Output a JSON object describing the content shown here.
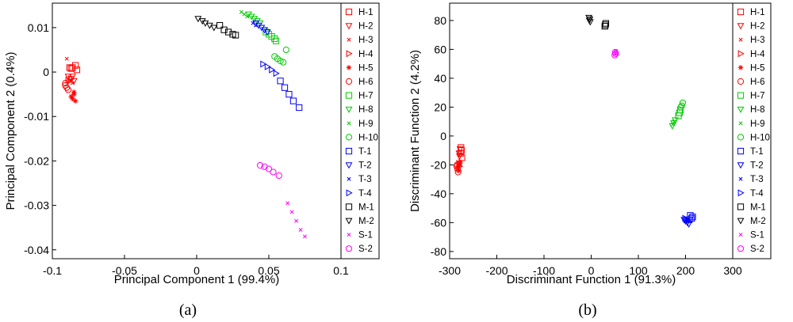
{
  "figure": {
    "caption_a": "(a)",
    "caption_b": "(b)"
  },
  "legend_labels": [
    "H-1",
    "H-2",
    "H-3",
    "H-4",
    "H-5",
    "H-6",
    "H-7",
    "H-8",
    "H-9",
    "H-10",
    "T-1",
    "T-2",
    "T-3",
    "T-4",
    "M-1",
    "M-2",
    "S-1",
    "S-2"
  ],
  "series_style": {
    "H-1": {
      "color": "#ff0000",
      "marker": "square"
    },
    "H-2": {
      "color": "#ff0000",
      "marker": "triangle-down"
    },
    "H-3": {
      "color": "#ff0000",
      "marker": "x"
    },
    "H-4": {
      "color": "#ff0000",
      "marker": "triangle-right"
    },
    "H-5": {
      "color": "#ff0000",
      "marker": "star"
    },
    "H-6": {
      "color": "#ff0000",
      "marker": "circle"
    },
    "H-7": {
      "color": "#00cc00",
      "marker": "square"
    },
    "H-8": {
      "color": "#00cc00",
      "marker": "triangle-down"
    },
    "H-9": {
      "color": "#00cc00",
      "marker": "x"
    },
    "H-10": {
      "color": "#00cc00",
      "marker": "circle"
    },
    "T-1": {
      "color": "#0000ff",
      "marker": "square"
    },
    "T-2": {
      "color": "#0000ff",
      "marker": "triangle-down"
    },
    "T-3": {
      "color": "#0000ff",
      "marker": "x"
    },
    "T-4": {
      "color": "#0000ff",
      "marker": "triangle-right"
    },
    "M-1": {
      "color": "#000000",
      "marker": "square"
    },
    "M-2": {
      "color": "#000000",
      "marker": "triangle-down"
    },
    "S-1": {
      "color": "#ff00ff",
      "marker": "x"
    },
    "S-2": {
      "color": "#ff00ff",
      "marker": "circle"
    }
  },
  "chart_data": [
    {
      "type": "scatter",
      "panel": "a",
      "xlabel": "Principal Component 1 (99.4%)",
      "ylabel": "Principal Component 2 (0.4%)",
      "xlim": [
        -0.1,
        0.1
      ],
      "ylim": [
        -0.042,
        0.0155
      ],
      "xticks": [
        -0.1,
        -0.05,
        0,
        0.05,
        0.1
      ],
      "xtick_labels": [
        "-0.1",
        "-0.05",
        "0",
        "0.05",
        "0.1"
      ],
      "yticks": [
        0.01,
        0,
        -0.01,
        -0.02,
        -0.03,
        -0.04
      ],
      "ytick_labels": [
        "0.01",
        "0",
        "-0.01",
        "-0.02",
        "-0.03",
        "-0.04"
      ],
      "grid": false,
      "legend": "right",
      "series": [
        {
          "name": "H-1",
          "points": [
            [
              -0.088,
              0.001
            ],
            [
              -0.086,
              0.001
            ],
            [
              -0.084,
              0.0015
            ],
            [
              -0.083,
              0.0005
            ],
            [
              -0.087,
              0.0008
            ]
          ]
        },
        {
          "name": "H-2",
          "points": [
            [
              -0.089,
              -0.001
            ],
            [
              -0.087,
              -0.0015
            ],
            [
              -0.085,
              -0.002
            ],
            [
              -0.086,
              -0.001
            ]
          ]
        },
        {
          "name": "H-3",
          "points": [
            [
              -0.09,
              0.003
            ],
            [
              -0.088,
              -0.002
            ],
            [
              -0.086,
              -0.0025
            ]
          ]
        },
        {
          "name": "H-4",
          "points": [
            [
              -0.088,
              -0.002
            ],
            [
              -0.087,
              -0.0015
            ],
            [
              -0.089,
              -0.0018
            ]
          ]
        },
        {
          "name": "H-5",
          "points": [
            [
              -0.087,
              -0.0055
            ],
            [
              -0.086,
              -0.006
            ],
            [
              -0.085,
              -0.005
            ],
            [
              -0.084,
              -0.0065
            ],
            [
              -0.085,
              -0.0045
            ]
          ]
        },
        {
          "name": "H-6",
          "points": [
            [
              -0.091,
              -0.003
            ],
            [
              -0.09,
              -0.0035
            ],
            [
              -0.089,
              -0.004
            ],
            [
              -0.091,
              -0.0025
            ]
          ]
        },
        {
          "name": "H-7",
          "points": [
            [
              0.05,
              0.0085
            ],
            [
              0.052,
              0.008
            ],
            [
              0.054,
              0.0075
            ],
            [
              0.055,
              0.007
            ],
            [
              0.048,
              0.009
            ]
          ]
        },
        {
          "name": "H-8",
          "points": [
            [
              0.036,
              0.013
            ],
            [
              0.038,
              0.0125
            ],
            [
              0.04,
              0.012
            ],
            [
              0.042,
              0.0115
            ],
            [
              0.044,
              0.011
            ]
          ]
        },
        {
          "name": "H-9",
          "points": [
            [
              0.031,
              0.0135
            ],
            [
              0.033,
              0.013
            ],
            [
              0.035,
              0.0125
            ]
          ]
        },
        {
          "name": "H-10",
          "points": [
            [
              0.054,
              0.0035
            ],
            [
              0.056,
              0.003
            ],
            [
              0.058,
              0.0025
            ],
            [
              0.06,
              0.0022
            ],
            [
              0.062,
              0.005
            ]
          ]
        },
        {
          "name": "T-1",
          "points": [
            [
              0.058,
              -0.002
            ],
            [
              0.061,
              -0.0035
            ],
            [
              0.064,
              -0.005
            ],
            [
              0.067,
              -0.0065
            ],
            [
              0.071,
              -0.008
            ]
          ]
        },
        {
          "name": "T-2",
          "points": [
            [
              0.043,
              0.0105
            ],
            [
              0.045,
              0.01
            ],
            [
              0.047,
              0.0095
            ],
            [
              0.049,
              0.009
            ],
            [
              0.041,
              0.011
            ]
          ]
        },
        {
          "name": "T-3",
          "points": [
            [
              0.039,
              0.011
            ],
            [
              0.041,
              0.0105
            ]
          ]
        },
        {
          "name": "T-4",
          "points": [
            [
              0.046,
              0.0018
            ],
            [
              0.049,
              0.0012
            ],
            [
              0.052,
              0.0005
            ],
            [
              0.055,
              -0.0003
            ]
          ]
        },
        {
          "name": "M-1",
          "points": [
            [
              0.016,
              0.0105
            ],
            [
              0.019,
              0.0095
            ],
            [
              0.022,
              0.009
            ],
            [
              0.025,
              0.0085
            ],
            [
              0.027,
              0.0083
            ]
          ]
        },
        {
          "name": "M-2",
          "points": [
            [
              0.001,
              0.012
            ],
            [
              0.004,
              0.0115
            ],
            [
              0.006,
              0.011
            ],
            [
              0.009,
              0.0105
            ],
            [
              0.012,
              0.01
            ]
          ]
        },
        {
          "name": "S-1",
          "points": [
            [
              0.063,
              -0.0295
            ],
            [
              0.066,
              -0.0315
            ],
            [
              0.069,
              -0.0335
            ],
            [
              0.072,
              -0.0355
            ],
            [
              0.075,
              -0.037
            ]
          ]
        },
        {
          "name": "S-2",
          "points": [
            [
              0.044,
              -0.021
            ],
            [
              0.047,
              -0.0213
            ],
            [
              0.05,
              -0.0218
            ],
            [
              0.053,
              -0.0225
            ],
            [
              0.057,
              -0.0233
            ]
          ]
        }
      ]
    },
    {
      "type": "scatter",
      "panel": "b",
      "xlabel": "Discriminant Function 1 (91.3%)",
      "ylabel": "Discriminant Function 2 (4.2%)",
      "xlim": [
        -300,
        300
      ],
      "ylim": [
        -85,
        92
      ],
      "xticks": [
        -300,
        -200,
        -100,
        0,
        100,
        200,
        300
      ],
      "xtick_labels": [
        "-300",
        "-200",
        "-100",
        "0",
        "100",
        "200",
        "300"
      ],
      "yticks": [
        80,
        60,
        40,
        20,
        0,
        -20,
        -40,
        -60,
        -80
      ],
      "ytick_labels": [
        "80",
        "60",
        "40",
        "20",
        "0",
        "-20",
        "-40",
        "-60",
        "-80"
      ],
      "grid": false,
      "legend": "right",
      "series": [
        {
          "name": "H-1",
          "points": [
            [
              -276,
              -8
            ],
            [
              -275,
              -10
            ],
            [
              -277,
              -12
            ],
            [
              -274,
              -15
            ]
          ]
        },
        {
          "name": "H-2",
          "points": [
            [
              -278,
              -9
            ],
            [
              -280,
              -12
            ],
            [
              -279,
              -14
            ]
          ]
        },
        {
          "name": "H-3",
          "points": [
            [
              -282,
              -18
            ],
            [
              -281,
              -20
            ]
          ]
        },
        {
          "name": "H-4",
          "points": [
            [
              -280,
              -19
            ],
            [
              -279,
              -21
            ]
          ]
        },
        {
          "name": "H-5",
          "points": [
            [
              -283,
              -22
            ],
            [
              -281,
              -24
            ],
            [
              -279,
              -20
            ],
            [
              -277,
              -18
            ]
          ]
        },
        {
          "name": "H-6",
          "points": [
            [
              -284,
              -20
            ],
            [
              -283,
              -23
            ],
            [
              -282,
              -25
            ],
            [
              -285,
              -21
            ]
          ]
        },
        {
          "name": "H-7",
          "points": [
            [
              185,
              14
            ],
            [
              187,
              16
            ],
            [
              189,
              18
            ]
          ]
        },
        {
          "name": "H-8",
          "points": [
            [
              172,
              7
            ],
            [
              175,
              9
            ],
            [
              178,
              11
            ]
          ]
        },
        {
          "name": "H-9",
          "points": [
            [
              173,
              8
            ],
            [
              176,
              10
            ]
          ]
        },
        {
          "name": "H-10",
          "points": [
            [
              192,
              21
            ],
            [
              194,
              23
            ],
            [
              190,
              20
            ]
          ]
        },
        {
          "name": "T-1",
          "points": [
            [
              210,
              -55
            ],
            [
              213,
              -57
            ],
            [
              215,
              -56
            ],
            [
              208,
              -58
            ]
          ]
        },
        {
          "name": "T-2",
          "points": [
            [
              200,
              -59
            ],
            [
              204,
              -60
            ],
            [
              207,
              -61
            ],
            [
              197,
              -58
            ]
          ]
        },
        {
          "name": "T-3",
          "points": [
            [
              203,
              -58
            ],
            [
              206,
              -59
            ]
          ]
        },
        {
          "name": "T-4",
          "points": [
            [
              199,
              -57
            ],
            [
              202,
              -58
            ]
          ]
        },
        {
          "name": "M-1",
          "points": [
            [
              30,
              77
            ],
            [
              31,
              78
            ],
            [
              29,
              76
            ]
          ]
        },
        {
          "name": "M-2",
          "points": [
            [
              -4,
              80
            ],
            [
              -3,
              81
            ],
            [
              -5,
              82
            ],
            [
              -2,
              79
            ]
          ]
        },
        {
          "name": "S-1",
          "points": [
            [
              52,
              59
            ],
            [
              51,
              57
            ]
          ]
        },
        {
          "name": "S-2",
          "points": [
            [
              50,
              56
            ],
            [
              51,
              58
            ],
            [
              52,
              57
            ]
          ]
        }
      ]
    }
  ]
}
